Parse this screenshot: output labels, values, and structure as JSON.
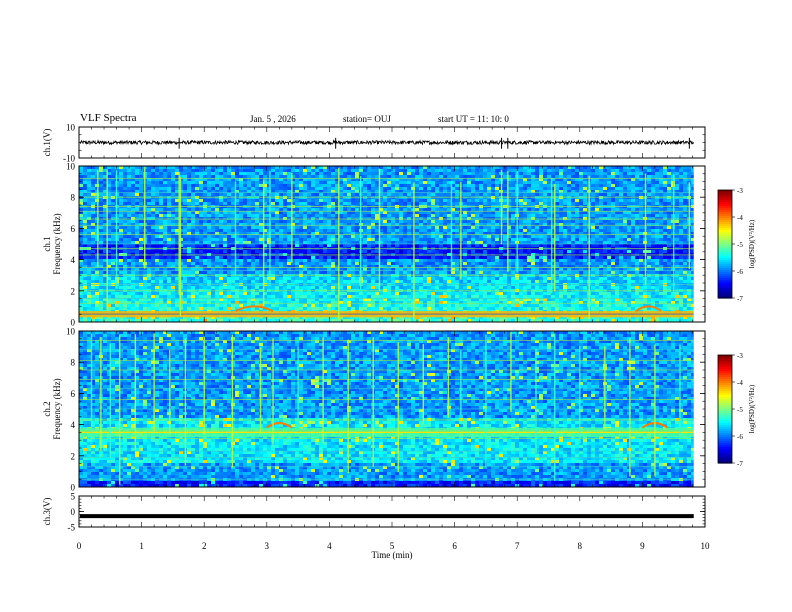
{
  "header": {
    "title": "VLF Spectra",
    "date": "Jan. 5 , 2026",
    "station": "station= OUJ",
    "start_ut": "start UT =  11: 10: 0"
  },
  "chart_data": [
    {
      "type": "line",
      "panel": "ch1-waveform",
      "ylabel": "ch.1(V)",
      "ylim": [
        -10,
        10
      ],
      "y_ticks": [
        "10",
        "-10"
      ],
      "baseline": 0,
      "noise_amplitude": 0.6,
      "spike_minutes": [
        1.6,
        4.1,
        6.75,
        6.85,
        9.75
      ]
    },
    {
      "type": "heatmap",
      "panel": "ch1-spectrogram",
      "ylabel_channel": "ch.1",
      "ylabel": "Frequency (kHz)",
      "ylim": [
        0,
        10
      ],
      "y_ticks": [
        "0",
        "2",
        "4",
        "6",
        "8",
        "10"
      ],
      "colorbar_label": "log(PSD)(V²/Hz)",
      "colorbar_ticks": [
        "-3",
        "-4",
        "-5",
        "-6",
        "-7"
      ],
      "colorbar_range": [
        -7,
        -3
      ],
      "horizontal_lines_khz": [
        0.5,
        1.2,
        1.5,
        2.0,
        2.4,
        3.0,
        3.3,
        3.5,
        4.3,
        4.7,
        5.0,
        5.6,
        6.2,
        6.6,
        7.1,
        7.4,
        8.0,
        8.3,
        9.2
      ],
      "strong_band_khz": [
        0.3,
        0.7
      ],
      "dark_band_khz": [
        4.0,
        5.0
      ],
      "hump_minutes": [
        [
          2.5,
          3.1
        ],
        [
          8.9,
          9.3
        ]
      ],
      "vertical_lines_minutes": [
        0.3,
        0.45,
        0.6,
        1.05,
        1.6,
        1.62,
        2.5,
        2.95,
        3.05,
        3.4,
        4.15,
        4.5,
        4.8,
        5.35,
        5.95,
        6.1,
        6.75,
        6.85,
        7.0,
        7.55,
        7.6,
        8.15,
        9.05,
        9.5,
        9.75
      ]
    },
    {
      "type": "heatmap",
      "panel": "ch2-spectrogram",
      "ylabel_channel": "ch.2",
      "ylabel": "Frequency (kHz)",
      "ylim": [
        0,
        10
      ],
      "y_ticks": [
        "0",
        "2",
        "4",
        "6",
        "8",
        "10"
      ],
      "colorbar_label": "log(PSD)(V²/Hz)",
      "colorbar_ticks": [
        "-3",
        "-4",
        "-5",
        "-6",
        "-7"
      ],
      "colorbar_range": [
        -7,
        -3
      ],
      "horizontal_lines_khz": [
        0.5,
        1.3,
        1.9,
        2.3,
        3.1,
        3.6,
        4.3,
        5.0,
        5.6,
        6.3,
        6.9,
        7.5,
        8.1,
        8.8,
        9.4
      ],
      "strong_band_khz": [
        3.2,
        3.8
      ],
      "dark_band_khz": [
        0.0,
        0.4
      ],
      "hump_minutes": [
        [
          3.0,
          3.4
        ],
        [
          9.0,
          9.4
        ]
      ],
      "vertical_lines_minutes": [
        0.2,
        0.35,
        0.5,
        0.65,
        0.9,
        1.2,
        1.45,
        1.7,
        2.0,
        2.45,
        2.9,
        3.1,
        3.5,
        3.9,
        4.3,
        4.7,
        5.1,
        5.5,
        5.9,
        6.1,
        6.5,
        6.9,
        7.3,
        7.6,
        8.0,
        8.4,
        8.8,
        9.2,
        9.6
      ]
    },
    {
      "type": "line",
      "panel": "ch3-waveform",
      "ylabel": "ch.3(V)",
      "ylim": [
        -5,
        5
      ],
      "y_ticks": [
        "5",
        "0",
        "-5"
      ],
      "value": -1.5
    }
  ],
  "xaxis": {
    "label": "Time (min)",
    "range": [
      0,
      10
    ],
    "ticks": [
      "0",
      "1",
      "2",
      "3",
      "4",
      "5",
      "6",
      "7",
      "8",
      "9",
      "10"
    ],
    "data_end": 9.82
  }
}
